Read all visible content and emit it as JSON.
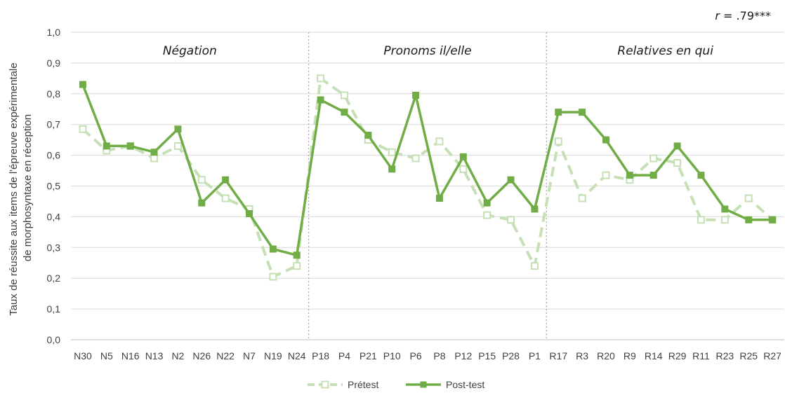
{
  "chart_data": {
    "type": "line",
    "ylabel": [
      "Taux de réussite aux items de l'épreuve expérimentale",
      "de morphosyntaxe en réception"
    ],
    "ylim": [
      0,
      1.0
    ],
    "yticks": [
      "0,0",
      "0,1",
      "0,2",
      "0,3",
      "0,4",
      "0,5",
      "0,6",
      "0,7",
      "0,8",
      "0,9",
      "1,0"
    ],
    "grid": true,
    "legend_position": "bottom",
    "annotation": {
      "italic": "r",
      "rest": " = .79***"
    },
    "categories": [
      "N30",
      "N5",
      "N16",
      "N13",
      "N2",
      "N26",
      "N22",
      "N7",
      "N19",
      "N24",
      "P18",
      "P4",
      "P21",
      "P10",
      "P6",
      "P8",
      "P12",
      "P15",
      "P28",
      "P1",
      "R17",
      "R3",
      "R20",
      "R9",
      "R14",
      "R29",
      "R11",
      "R23",
      "R25",
      "R27"
    ],
    "sections": [
      {
        "label": "Négation",
        "start": 0,
        "end": 9
      },
      {
        "label": "Pronoms il/elle",
        "start": 10,
        "end": 19
      },
      {
        "label": "Relatives en qui",
        "start": 20,
        "end": 29
      }
    ],
    "series": [
      {
        "name": "Prétest",
        "color": "#c5e0b4",
        "style": "dashed",
        "marker": "hollow-square",
        "values": [
          0.685,
          0.615,
          0.63,
          0.59,
          0.63,
          0.52,
          0.46,
          0.425,
          0.205,
          0.24,
          0.85,
          0.795,
          0.65,
          0.61,
          0.59,
          0.645,
          0.555,
          0.405,
          0.39,
          0.24,
          0.645,
          0.46,
          0.535,
          0.52,
          0.59,
          0.575,
          0.39,
          0.39,
          0.46,
          0.39
        ]
      },
      {
        "name": "Post-test",
        "color": "#70ad47",
        "style": "solid",
        "marker": "filled-square",
        "values": [
          0.83,
          0.63,
          0.63,
          0.61,
          0.685,
          0.445,
          0.52,
          0.41,
          0.295,
          0.275,
          0.78,
          0.74,
          0.665,
          0.555,
          0.795,
          0.46,
          0.595,
          0.445,
          0.52,
          0.425,
          0.74,
          0.74,
          0.65,
          0.535,
          0.535,
          0.63,
          0.535,
          0.425,
          0.39,
          0.39
        ]
      }
    ]
  }
}
